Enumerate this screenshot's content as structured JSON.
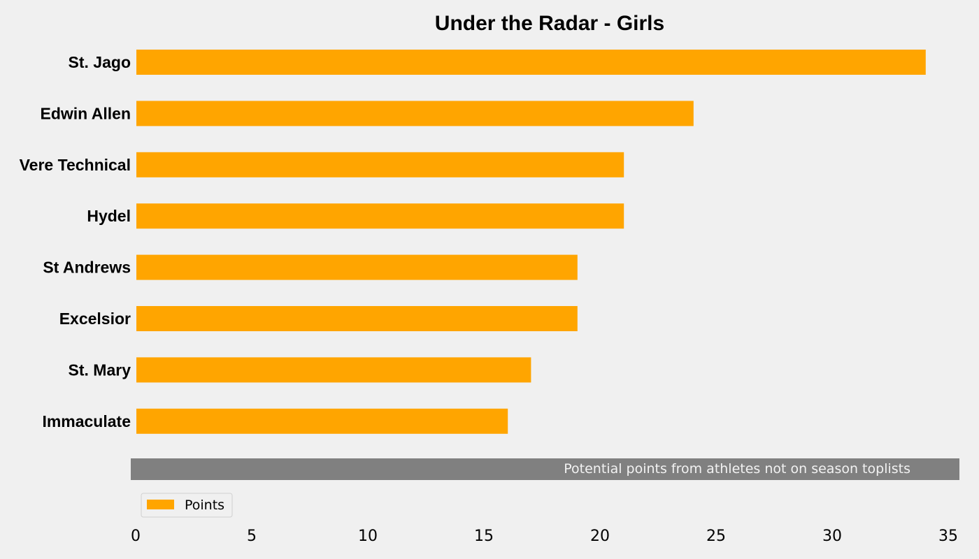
{
  "chart_data": {
    "type": "bar",
    "orientation": "horizontal",
    "title": "Under the Radar - Girls",
    "categories": [
      "St. Jago",
      "Edwin Allen",
      "Vere Technical",
      "Hydel",
      "St Andrews",
      "Excelsior",
      "St. Mary",
      "Immaculate"
    ],
    "series": [
      {
        "name": "Points",
        "values": [
          34,
          24,
          21,
          21,
          19,
          19,
          17,
          16
        ]
      }
    ],
    "xlim": [
      0,
      35.5
    ],
    "xticks": [
      0,
      5,
      10,
      15,
      20,
      25,
      30,
      35
    ],
    "xlabel": "",
    "ylabel": "",
    "grid": false,
    "legend_position": "bottom-left",
    "annotation": "Potential points from athletes not on season toplists",
    "colors": {
      "bar": "#ffa500",
      "background": "#f0f0f0",
      "banner": "#808080",
      "banner_text": "#f2f2f2"
    }
  }
}
